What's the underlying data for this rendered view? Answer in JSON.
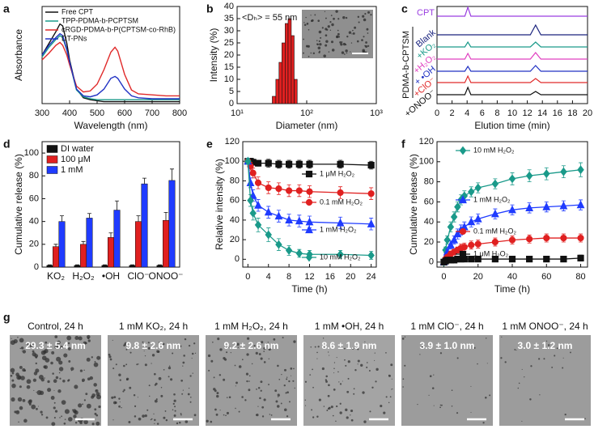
{
  "chart_data": [
    {
      "type": "line",
      "panel_label": "a",
      "xlabel": "Wavelength (nm)",
      "ylabel": "Absorbance",
      "xlim": [
        300,
        800
      ],
      "xticks": [
        300,
        400,
        500,
        600,
        700,
        800
      ],
      "ylim": [
        0,
        1
      ],
      "yticks": [],
      "x": [
        300,
        325,
        350,
        365,
        375,
        390,
        400,
        425,
        450,
        475,
        500,
        525,
        550,
        565,
        575,
        600,
        625,
        650,
        700,
        750,
        800
      ],
      "series": [
        {
          "name": "Free CPT",
          "color": "#111111",
          "values": [
            0.5,
            0.62,
            0.74,
            0.82,
            0.8,
            0.62,
            0.45,
            0.15,
            0.06,
            0.04,
            0.03,
            0.02,
            0.02,
            0.02,
            0.02,
            0.02,
            0.02,
            0.02,
            0.02,
            0.02,
            0.02
          ]
        },
        {
          "name": "TPP-PDMA-b-PCPTSM",
          "color": "#1a9a8a",
          "values": [
            0.48,
            0.58,
            0.66,
            0.7,
            0.68,
            0.55,
            0.42,
            0.14,
            0.07,
            0.05,
            0.04,
            0.04,
            0.04,
            0.04,
            0.04,
            0.04,
            0.04,
            0.04,
            0.04,
            0.04,
            0.04
          ]
        },
        {
          "name": "cRGD-PDMA-b-P(CPTSM-co-RhB)",
          "color": "#e02a2a",
          "values": [
            0.45,
            0.52,
            0.6,
            0.63,
            0.6,
            0.5,
            0.4,
            0.18,
            0.12,
            0.13,
            0.2,
            0.35,
            0.53,
            0.58,
            0.54,
            0.3,
            0.14,
            0.1,
            0.09,
            0.08,
            0.08
          ]
        },
        {
          "name": "DT-PNs",
          "color": "#2233c4",
          "values": [
            0.5,
            0.6,
            0.68,
            0.72,
            0.7,
            0.56,
            0.43,
            0.15,
            0.08,
            0.07,
            0.09,
            0.15,
            0.26,
            0.28,
            0.26,
            0.15,
            0.08,
            0.06,
            0.05,
            0.05,
            0.05
          ]
        }
      ]
    },
    {
      "type": "histogram",
      "panel_label": "b",
      "xlabel": "Diameter (nm)",
      "ylabel": "Intensity (%)",
      "annotation": "<Dₕ> = 55 nm",
      "xscale": "log",
      "xlim": [
        10,
        1000
      ],
      "xticks": [
        {
          "value": 10,
          "label": "10¹"
        },
        {
          "value": 100,
          "label": "10²"
        },
        {
          "value": 1000,
          "label": "10³"
        }
      ],
      "ylim": [
        0,
        40
      ],
      "yticks": [
        0,
        5,
        10,
        15,
        20,
        25,
        30,
        35,
        40
      ],
      "color": "#e02020",
      "bins": [
        32,
        36,
        40,
        44,
        49,
        54,
        60,
        66,
        73
      ],
      "values": [
        3,
        10,
        17,
        25,
        33,
        35,
        28,
        10
      ]
    },
    {
      "type": "chromatogram",
      "panel_label": "c",
      "xlabel": "Elution time (min)",
      "group_label": "PDMA-b-CPTSM",
      "xlim": [
        0,
        20
      ],
      "xticks": [
        0,
        2,
        4,
        6,
        8,
        10,
        12,
        14,
        16,
        18,
        20
      ],
      "x": [
        0,
        3.7,
        4.1,
        4.5,
        12.4,
        13.1,
        13.8,
        20
      ],
      "series": [
        {
          "name": "CPT",
          "color": "#9a3ee0",
          "values": [
            0,
            0,
            1.1,
            0,
            0,
            0,
            0,
            0
          ]
        },
        {
          "name": "Blank",
          "color": "#1a237e",
          "values": [
            0,
            0,
            0,
            0,
            0,
            1.2,
            0,
            0
          ]
        },
        {
          "name": "+KO₂",
          "color": "#1a9a8a",
          "values": [
            0,
            0,
            0.6,
            0,
            0,
            0.6,
            0,
            0
          ]
        },
        {
          "name": "+H₂O₂",
          "color": "#e040c0",
          "values": [
            0,
            0,
            0.7,
            0,
            0,
            0.8,
            0,
            0
          ]
        },
        {
          "name": "+ •OH",
          "color": "#2233c4",
          "values": [
            0,
            0,
            0.6,
            0,
            0,
            0.7,
            0,
            0
          ]
        },
        {
          "name": "+ClO⁻",
          "color": "#e02a2a",
          "values": [
            0,
            0,
            0.8,
            0,
            0,
            0.5,
            0,
            0
          ]
        },
        {
          "name": "+ONOO⁻",
          "color": "#111111",
          "values": [
            0,
            0,
            0.9,
            0,
            0,
            0.4,
            0,
            0
          ]
        }
      ]
    },
    {
      "type": "bar",
      "panel_label": "d",
      "ylabel": "Cumulative release (%)",
      "ylim": [
        0,
        110
      ],
      "yticks": [
        0,
        20,
        40,
        60,
        80,
        100
      ],
      "categories": [
        "KO₂",
        "H₂O₂",
        "•OH",
        "ClO⁻",
        "ONOO⁻"
      ],
      "series": [
        {
          "name": "DI water",
          "color": "#111111",
          "values": [
            1.5,
            1.5,
            1.5,
            1.5,
            1.5
          ],
          "errors": [
            0.5,
            0.5,
            0.5,
            0.5,
            0.5
          ]
        },
        {
          "name": "100 μM",
          "color": "#e02020",
          "values": [
            18,
            20,
            26,
            40,
            41
          ],
          "errors": [
            2,
            2.5,
            4,
            5,
            7
          ]
        },
        {
          "name": "1 mM",
          "color": "#1f3bff",
          "values": [
            40,
            43,
            50,
            73,
            76
          ],
          "errors": [
            5,
            4,
            8,
            5,
            10
          ]
        }
      ]
    },
    {
      "type": "line",
      "panel_label": "e",
      "xlabel": "Time (h)",
      "ylabel": "Relative intensity (%)",
      "xlim": [
        -1,
        25
      ],
      "xticks": [
        0,
        4,
        8,
        12,
        16,
        20,
        24
      ],
      "ylim": [
        -8,
        120
      ],
      "yticks": [
        0,
        20,
        40,
        60,
        80,
        100,
        120
      ],
      "x": [
        0,
        0.5,
        1,
        2,
        4,
        6,
        8,
        10,
        12,
        18,
        24
      ],
      "series": [
        {
          "name": "1 μM H₂O₂",
          "color": "#111111",
          "marker": "square",
          "values": [
            100,
            100,
            99,
            98,
            98,
            97,
            97,
            97,
            97,
            97,
            96
          ],
          "errors": [
            3,
            3,
            3,
            3,
            4,
            4,
            4,
            4,
            4,
            4,
            4
          ]
        },
        {
          "name": "0.1 mM H₂O₂",
          "color": "#e02020",
          "marker": "circle",
          "values": [
            100,
            95,
            88,
            78,
            73,
            72,
            70,
            70,
            69,
            68,
            67
          ],
          "errors": [
            3,
            4,
            5,
            6,
            6,
            6,
            6,
            6,
            6,
            6,
            6
          ]
        },
        {
          "name": "1 mM H₂O₂",
          "color": "#1f3bff",
          "marker": "triangle",
          "values": [
            100,
            78,
            65,
            55,
            48,
            44,
            40,
            39,
            38,
            37,
            36
          ],
          "errors": [
            3,
            5,
            6,
            6,
            6,
            6,
            6,
            6,
            6,
            6,
            6
          ]
        },
        {
          "name": "10 mM H₂O₂",
          "color": "#1a9a8a",
          "marker": "diamond",
          "values": [
            100,
            60,
            47,
            35,
            25,
            15,
            9,
            6,
            5,
            5,
            4
          ],
          "errors": [
            3,
            6,
            7,
            7,
            7,
            6,
            5,
            4,
            4,
            4,
            4
          ]
        }
      ]
    },
    {
      "type": "line",
      "panel_label": "f",
      "xlabel": "Time (h)",
      "ylabel": "Cumulative release (%)",
      "xlim": [
        -4,
        84
      ],
      "xticks": [
        0,
        20,
        40,
        60,
        80
      ],
      "ylim": [
        -5,
        120
      ],
      "yticks": [
        0,
        20,
        40,
        60,
        80,
        100,
        120
      ],
      "x": [
        0,
        1,
        2,
        4,
        6,
        8,
        10,
        12,
        16,
        20,
        30,
        40,
        50,
        60,
        70,
        80
      ],
      "series": [
        {
          "name": "10 mM H₂O₂",
          "color": "#1a9a8a",
          "marker": "diamond",
          "values": [
            0,
            12,
            22,
            35,
            45,
            55,
            62,
            66,
            70,
            74,
            78,
            83,
            86,
            88,
            90,
            92
          ],
          "errors": [
            1,
            3,
            4,
            5,
            5,
            5,
            5,
            5,
            5,
            5,
            5,
            6,
            6,
            6,
            6,
            7
          ]
        },
        {
          "name": "1 mM H₂O₂",
          "color": "#1f3bff",
          "marker": "triangle",
          "values": [
            0,
            5,
            10,
            17,
            22,
            28,
            32,
            35,
            40,
            43,
            48,
            52,
            54,
            55,
            56,
            57
          ],
          "errors": [
            1,
            2,
            3,
            4,
            4,
            5,
            5,
            5,
            5,
            5,
            5,
            5,
            5,
            5,
            5,
            5
          ]
        },
        {
          "name": "0.1 mM H₂O₂",
          "color": "#e02020",
          "marker": "circle",
          "values": [
            0,
            3,
            5,
            8,
            10,
            12,
            14,
            15,
            17,
            18,
            20,
            22,
            23,
            24,
            24,
            24
          ],
          "errors": [
            1,
            2,
            2,
            3,
            3,
            3,
            4,
            4,
            4,
            4,
            4,
            4,
            4,
            4,
            4,
            4
          ]
        },
        {
          "name": "1 μM H₂O₂",
          "color": "#111111",
          "marker": "square",
          "values": [
            0,
            1,
            2,
            2,
            2,
            3,
            3,
            3,
            3,
            3,
            3,
            3,
            3,
            3,
            3,
            4
          ],
          "errors": [
            1,
            1,
            1,
            1,
            1,
            2,
            2,
            2,
            2,
            2,
            2,
            2,
            2,
            2,
            2,
            3
          ]
        }
      ]
    }
  ],
  "image_panel": {
    "panel_label": "g",
    "items": [
      {
        "caption": "Control, 24 h",
        "size": "29.3 ± 5.4 nm"
      },
      {
        "caption": "1 mM KO₂, 24 h",
        "size": "9.8 ± 2.6 nm"
      },
      {
        "caption": "1 mM H₂O₂, 24 h",
        "size": "9.2 ± 2.6 nm"
      },
      {
        "caption": "1 mM •OH, 24 h",
        "size": "8.6 ± 1.9 nm"
      },
      {
        "caption": "1 mM ClO⁻, 24 h",
        "size": "3.9 ± 1.0 nm"
      },
      {
        "caption": "1 mM ONOO⁻, 24 h",
        "size": "3.0 ± 1.2 nm"
      }
    ]
  }
}
